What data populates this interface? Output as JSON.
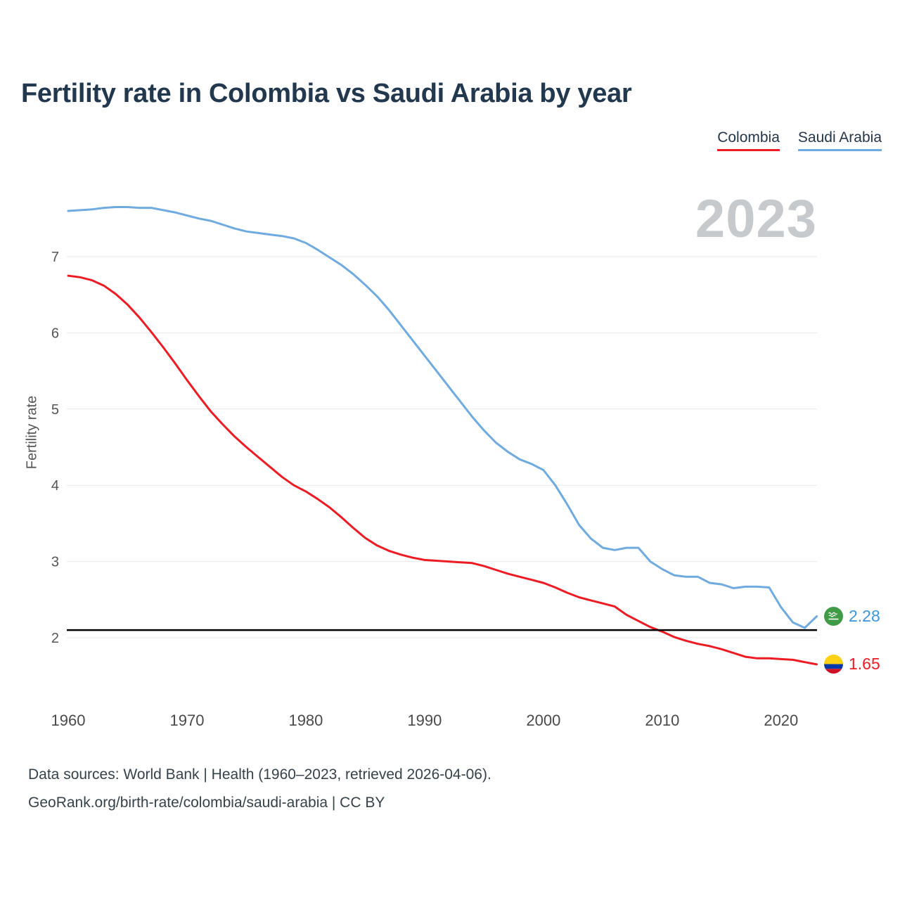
{
  "title": "Fertility rate in Colombia vs Saudi Arabia by year",
  "watermark": "2023",
  "legend": {
    "colombia": {
      "label": "Colombia",
      "color": "#ed1c24"
    },
    "saudi_arabia": {
      "label": "Saudi Arabia",
      "color": "#6fabdf"
    }
  },
  "end_labels": {
    "saudi_arabia": {
      "value": "2.28",
      "color": "#3d95d8",
      "flag": "saudi-arabia-flag"
    },
    "colombia": {
      "value": "1.65",
      "color": "#ed1c24",
      "flag": "colombia-flag"
    }
  },
  "footer": {
    "line1": "Data sources: World Bank | Health (1960–2023, retrieved 2026-04-06).",
    "line2": "GeoRank.org/birth-rate/colombia/saudi-arabia | CC BY"
  },
  "chart_data": {
    "type": "line",
    "title": "Fertility rate in Colombia vs Saudi Arabia by year",
    "ylabel": "Fertility rate",
    "xlabel": "",
    "grid": "horizontal",
    "legend_position": "top-right",
    "xlim": [
      1960,
      2023
    ],
    "ylim": [
      1.5,
      7.9
    ],
    "xticks": [
      1960,
      1970,
      1980,
      1990,
      2000,
      2010,
      2020
    ],
    "yticks": [
      2,
      3,
      4,
      5,
      6,
      7
    ],
    "reference_line": {
      "value": 2.1,
      "color": "#000000"
    },
    "x": [
      1960,
      1961,
      1962,
      1963,
      1964,
      1965,
      1966,
      1967,
      1968,
      1969,
      1970,
      1971,
      1972,
      1973,
      1974,
      1975,
      1976,
      1977,
      1978,
      1979,
      1980,
      1981,
      1982,
      1983,
      1984,
      1985,
      1986,
      1987,
      1988,
      1989,
      1990,
      1991,
      1992,
      1993,
      1994,
      1995,
      1996,
      1997,
      1998,
      1999,
      2000,
      2001,
      2002,
      2003,
      2004,
      2005,
      2006,
      2007,
      2008,
      2009,
      2010,
      2011,
      2012,
      2013,
      2014,
      2015,
      2016,
      2017,
      2018,
      2019,
      2020,
      2021,
      2022,
      2023
    ],
    "series": [
      {
        "name": "Colombia",
        "color": "#ed1c24",
        "values": [
          6.75,
          6.73,
          6.69,
          6.62,
          6.51,
          6.37,
          6.2,
          6.01,
          5.81,
          5.6,
          5.38,
          5.17,
          4.97,
          4.8,
          4.64,
          4.5,
          4.37,
          4.24,
          4.11,
          4.0,
          3.92,
          3.82,
          3.71,
          3.58,
          3.44,
          3.31,
          3.21,
          3.14,
          3.09,
          3.05,
          3.02,
          3.01,
          3.0,
          2.99,
          2.98,
          2.94,
          2.89,
          2.84,
          2.8,
          2.76,
          2.72,
          2.66,
          2.59,
          2.53,
          2.49,
          2.45,
          2.41,
          2.3,
          2.22,
          2.14,
          2.08,
          2.01,
          1.96,
          1.92,
          1.89,
          1.85,
          1.8,
          1.75,
          1.73,
          1.73,
          1.72,
          1.71,
          1.68,
          1.65
        ]
      },
      {
        "name": "Saudi Arabia",
        "color": "#6fabdf",
        "values": [
          7.6,
          7.61,
          7.62,
          7.64,
          7.65,
          7.65,
          7.64,
          7.64,
          7.61,
          7.58,
          7.54,
          7.5,
          7.47,
          7.42,
          7.37,
          7.33,
          7.31,
          7.29,
          7.27,
          7.24,
          7.18,
          7.09,
          6.99,
          6.89,
          6.77,
          6.63,
          6.48,
          6.3,
          6.1,
          5.9,
          5.7,
          5.5,
          5.3,
          5.1,
          4.9,
          4.72,
          4.56,
          4.44,
          4.34,
          4.28,
          4.2,
          4.0,
          3.75,
          3.48,
          3.3,
          3.18,
          3.15,
          3.18,
          3.18,
          3.0,
          2.9,
          2.82,
          2.8,
          2.8,
          2.72,
          2.7,
          2.65,
          2.67,
          2.67,
          2.66,
          2.4,
          2.2,
          2.13,
          2.28
        ]
      }
    ]
  }
}
